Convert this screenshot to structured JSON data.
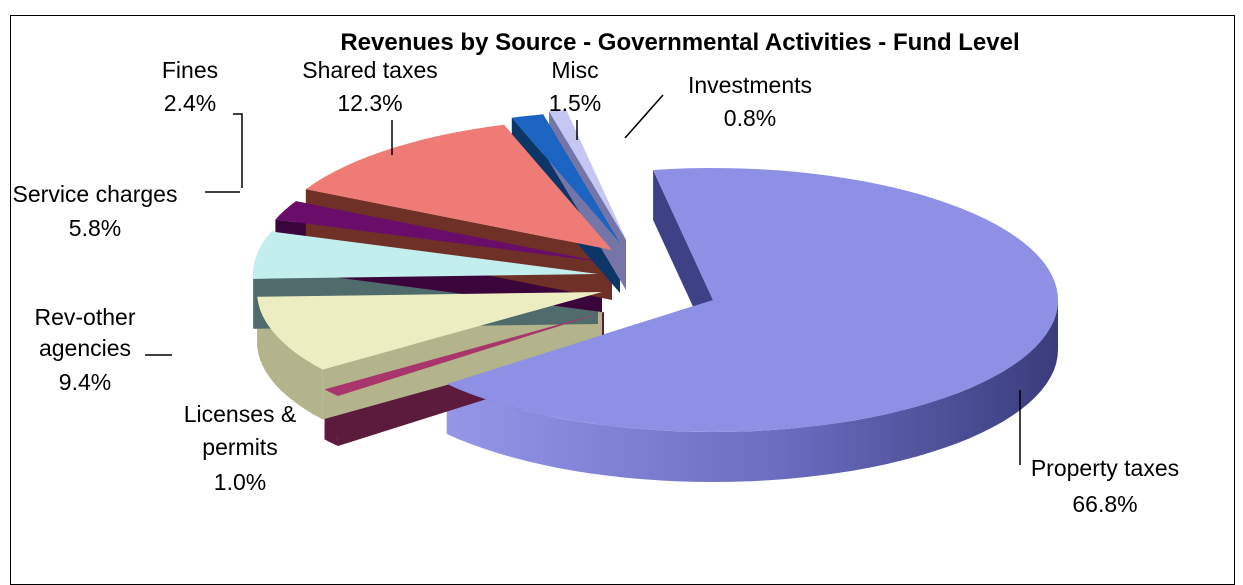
{
  "chart_data": {
    "type": "pie",
    "title": "Revenues by Source - Governmental Activities  - Fund Level",
    "slices": [
      {
        "name": "Property taxes",
        "value": 66.8,
        "label": "66.8%",
        "color": "#8e90e6",
        "side_color": "#3f4186",
        "name_lines": [
          "Property taxes"
        ]
      },
      {
        "name": "Licenses & permits",
        "value": 1.0,
        "label": "1.0%",
        "color": "#a8356b",
        "side_color": "#5c1a3c",
        "name_lines": [
          "Licenses &",
          "permits"
        ]
      },
      {
        "name": "Rev-other agencies",
        "value": 9.4,
        "label": "9.4%",
        "color": "#ededc2",
        "side_color": "#b3b38c",
        "name_lines": [
          "Rev-other",
          "agencies"
        ]
      },
      {
        "name": "Service charges",
        "value": 5.8,
        "label": "5.8%",
        "color": "#c2eeee",
        "side_color": "#4f6b6b",
        "name_lines": [
          "Service charges"
        ]
      },
      {
        "name": "Fines",
        "value": 2.4,
        "label": "2.4%",
        "color": "#6a0c6a",
        "side_color": "#3a053a",
        "name_lines": [
          "Fines"
        ]
      },
      {
        "name": "Shared taxes",
        "value": 12.3,
        "label": "12.3%",
        "color": "#ee7b76",
        "side_color": "#6f3028",
        "name_lines": [
          "Shared taxes"
        ]
      },
      {
        "name": "Misc",
        "value": 1.5,
        "label": "1.5%",
        "color": "#1b64c2",
        "side_color": "#0c3568",
        "name_lines": [
          "Misc"
        ]
      },
      {
        "name": "Investments",
        "value": 0.8,
        "label": "0.8%",
        "color": "#c6c6f2",
        "side_color": "#7575a8",
        "name_lines": [
          "Investments"
        ]
      }
    ],
    "legend": "none"
  }
}
